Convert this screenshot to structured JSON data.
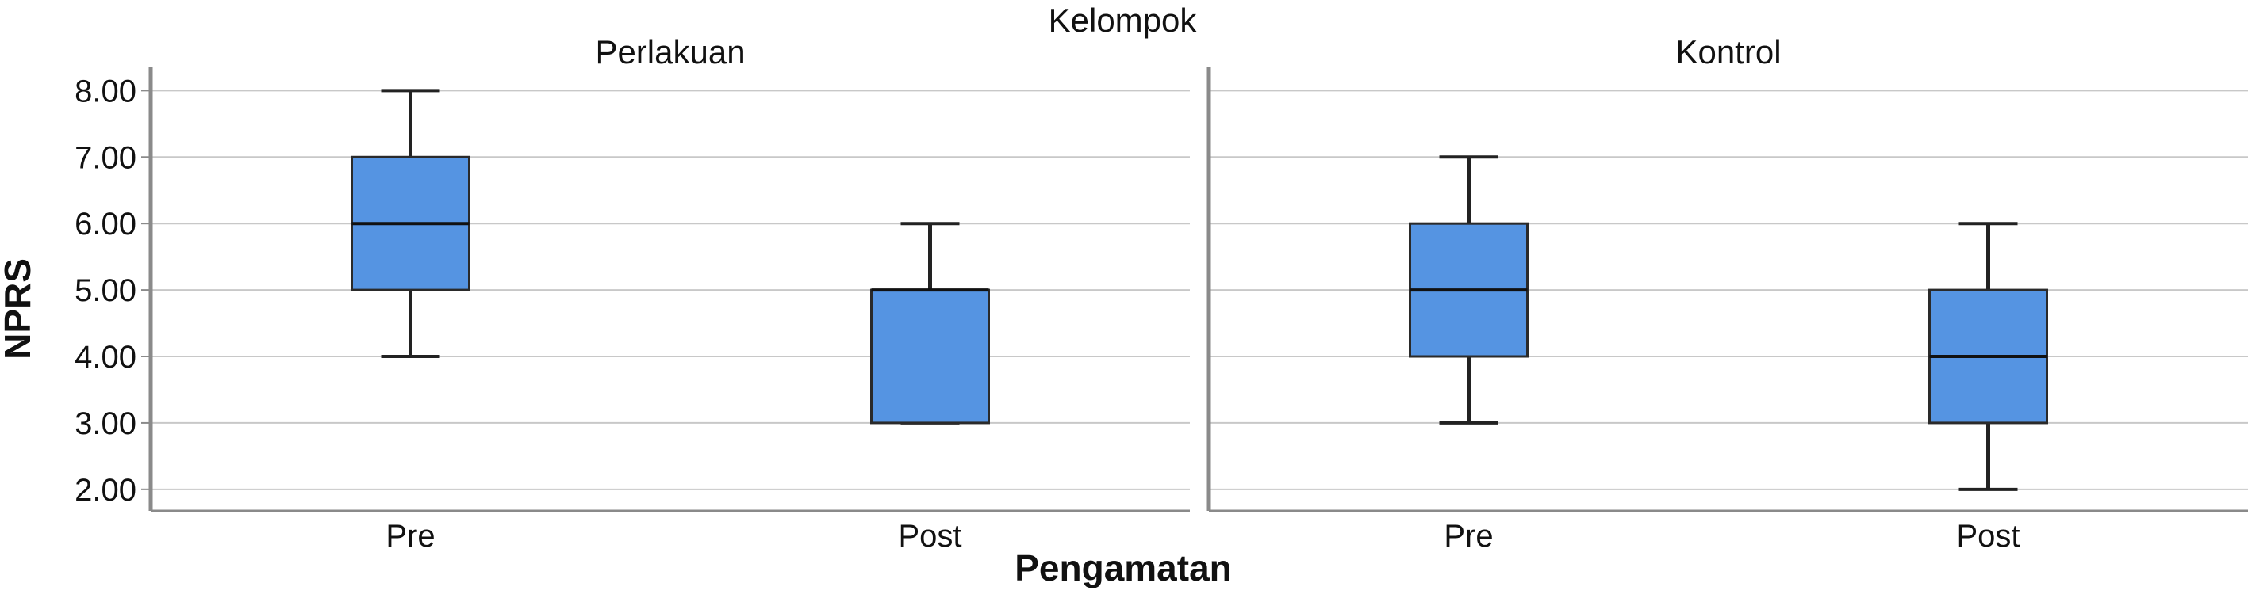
{
  "chart_data": {
    "type": "box",
    "title": "Kelompok",
    "xlabel": "Pengamatan",
    "ylabel": "NPRS",
    "ylim": [
      1.7,
      8.35
    ],
    "yticks": [
      "2.00",
      "3.00",
      "4.00",
      "5.00",
      "6.00",
      "7.00",
      "8.00"
    ],
    "ytick_values": [
      2,
      3,
      4,
      5,
      6,
      7,
      8
    ],
    "grid": true,
    "box_color": "#5594e2",
    "panels": [
      {
        "name": "Perlakuan",
        "categories": [
          "Pre",
          "Post"
        ],
        "boxes": [
          {
            "category": "Pre",
            "min": 4,
            "q1": 5,
            "median": 6,
            "q3": 7,
            "max": 8
          },
          {
            "category": "Post",
            "min": 3,
            "q1": 3,
            "median": 5,
            "q3": 5,
            "max": 6
          }
        ]
      },
      {
        "name": "Kontrol",
        "categories": [
          "Pre",
          "Post"
        ],
        "boxes": [
          {
            "category": "Pre",
            "min": 3,
            "q1": 4,
            "median": 5,
            "q3": 6,
            "max": 7
          },
          {
            "category": "Post",
            "min": 2,
            "q1": 3,
            "median": 4,
            "q3": 5,
            "max": 6
          }
        ]
      }
    ]
  }
}
